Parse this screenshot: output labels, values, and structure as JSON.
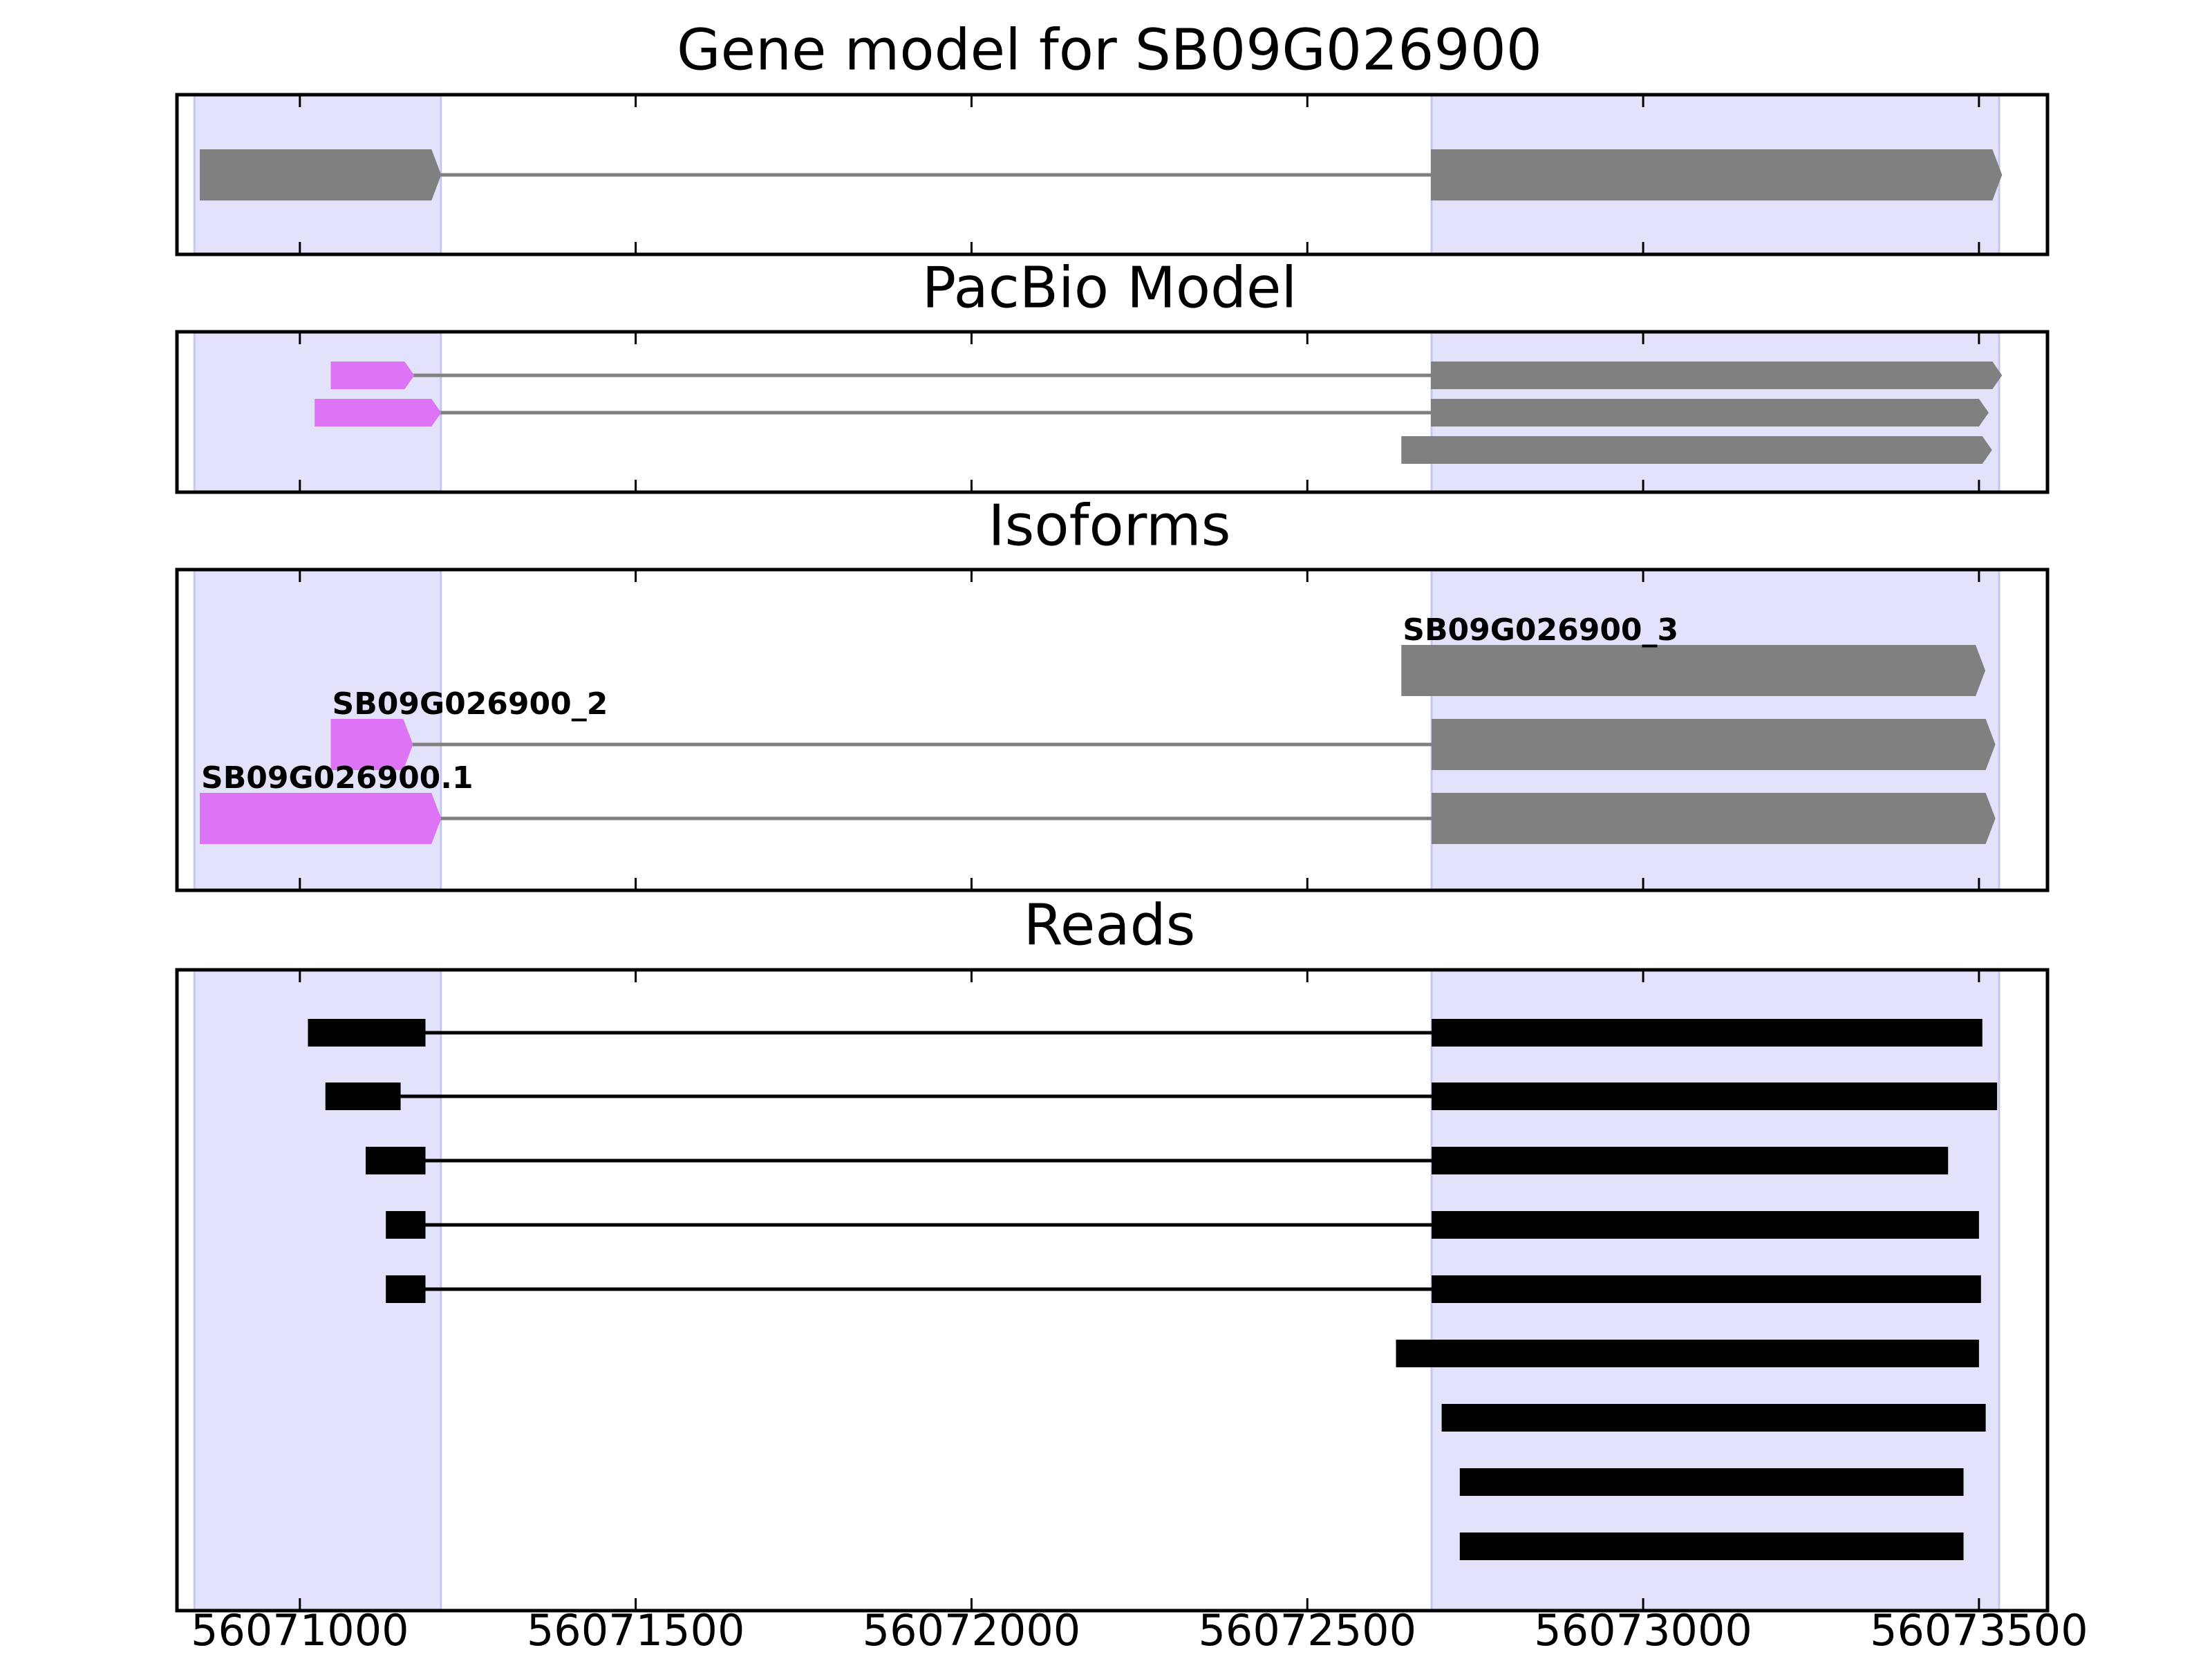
{
  "chart_data": {
    "type": "gene-structure",
    "x_axis": {
      "range": [
        56070817,
        56073602
      ],
      "ticks": [
        56071000,
        56071500,
        56072000,
        56072500,
        56073000,
        56073500
      ],
      "tick_labels": [
        "56071000",
        "56071500",
        "56072000",
        "56072500",
        "56073000",
        "56073500"
      ]
    },
    "colors": {
      "highlight": "#e2e2fb",
      "highlight_edge": "#c7c7ee",
      "exon": "#808080",
      "utr": "#dd74f6",
      "read": "#000000",
      "intron": "#808080",
      "read_intron": "#000000"
    },
    "highlight_regions": [
      [
        56070843,
        56071210
      ],
      [
        56072685,
        56073530
      ]
    ],
    "panels": [
      {
        "title": "Gene model for SB09G026900",
        "tracks": [
          {
            "exons": [
              [
                56070851,
                56071196,
                "cds"
              ],
              [
                56072684,
                56073520,
                "cds"
              ]
            ]
          }
        ]
      },
      {
        "title": "PacBio Model",
        "tracks": [
          {
            "exons": [
              [
                56071046,
                56071156,
                "utr"
              ],
              [
                56072684,
                56073520,
                "cds"
              ]
            ]
          },
          {
            "exons": [
              [
                56071022,
                56071196,
                "utr"
              ],
              [
                56072684,
                56073500,
                "cds"
              ]
            ]
          },
          {
            "exons": [
              [
                56072640,
                56073505,
                "cds"
              ]
            ]
          }
        ]
      },
      {
        "title": "Isoforms",
        "tracks": [
          {
            "label": "SB09G026900_3",
            "exons": [
              [
                56072640,
                56073495,
                "cds"
              ]
            ]
          },
          {
            "label": "SB09G026900_2",
            "exons": [
              [
                56071046,
                56071154,
                "utr"
              ],
              [
                56072685,
                56073510,
                "cds"
              ]
            ]
          },
          {
            "label": "SB09G026900.1",
            "exons": [
              [
                56070851,
                56071196,
                "utr"
              ],
              [
                56072685,
                56073510,
                "cds"
              ]
            ]
          }
        ]
      },
      {
        "title": "Reads",
        "tracks": [
          {
            "exons": [
              [
                56071012,
                56071187
              ],
              [
                56072685,
                56073505
              ]
            ]
          },
          {
            "exons": [
              [
                56071038,
                56071150
              ],
              [
                56072685,
                56073527
              ]
            ]
          },
          {
            "exons": [
              [
                56071098,
                56071187
              ],
              [
                56072685,
                56073454
              ]
            ]
          },
          {
            "exons": [
              [
                56071128,
                56071187
              ],
              [
                56072685,
                56073500
              ]
            ]
          },
          {
            "exons": [
              [
                56071128,
                56071187
              ],
              [
                56072685,
                56073503
              ]
            ]
          },
          {
            "exons": [
              [
                56072632,
                56073500
              ]
            ]
          },
          {
            "exons": [
              [
                56072700,
                56073510
              ]
            ]
          },
          {
            "exons": [
              [
                56072727,
                56073477
              ]
            ]
          },
          {
            "exons": [
              [
                56072727,
                56073477
              ]
            ]
          }
        ]
      }
    ]
  }
}
